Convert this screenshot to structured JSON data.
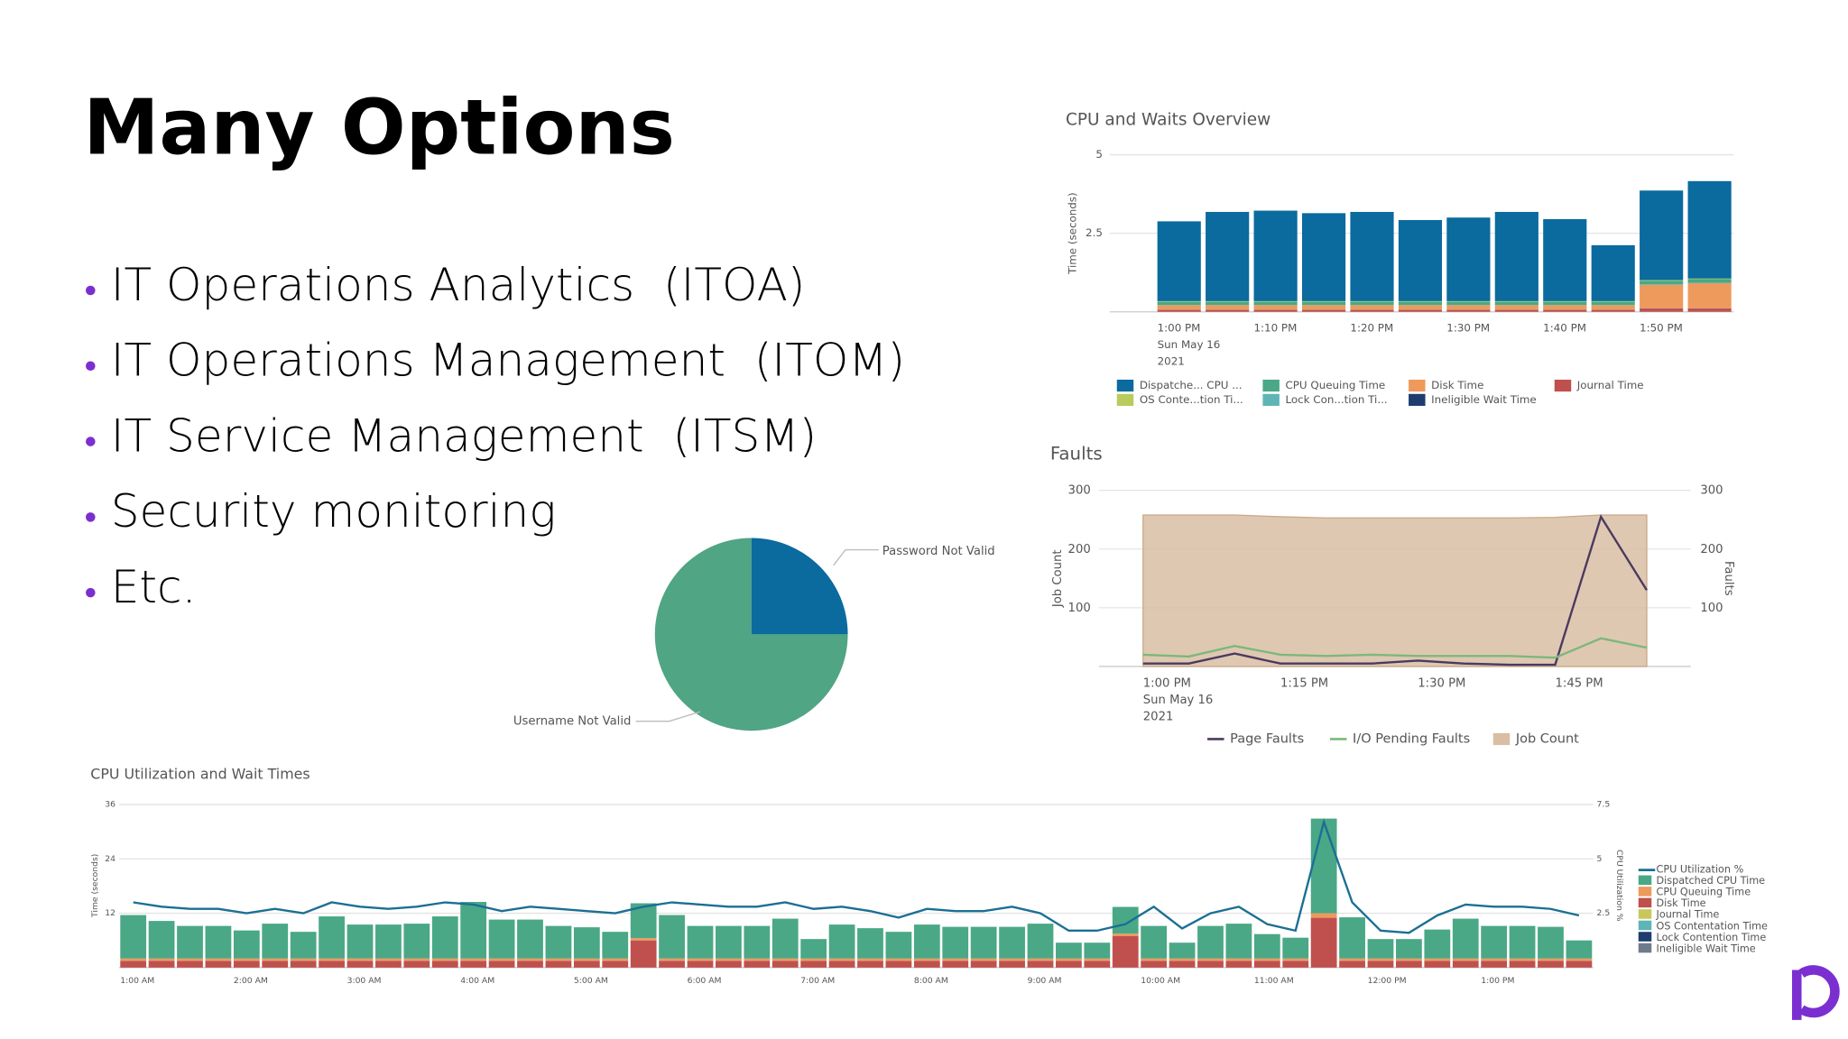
{
  "title": "Many Options",
  "bullets": [
    "IT Operations Analytics  (ITOA)",
    "IT Operations Management  (ITOM)",
    "IT Service Management  (ITSM)",
    "Security monitoring",
    "Etc."
  ],
  "chart_data": [
    {
      "type": "bar",
      "stacked": true,
      "title": "CPU and Waits Overview",
      "y_label": "Time (seconds)",
      "categories": [
        "1:00 PM",
        null,
        "1:10 PM",
        null,
        "1:20 PM",
        null,
        "1:30 PM",
        null,
        "1:40 PM",
        null,
        "1:50 PM",
        null
      ],
      "x_sublabels": [
        "Sun May 16",
        "2021"
      ],
      "ylim": [
        0,
        5
      ],
      "yticks": [
        2.5,
        5
      ],
      "grid": true,
      "series": [
        {
          "name": "Dispatche... CPU ...",
          "color": "#0b6a9e",
          "values": [
            2.54,
            2.84,
            2.88,
            2.8,
            2.84,
            2.58,
            2.66,
            2.84,
            2.61,
            1.78,
            2.85,
            3.1
          ]
        },
        {
          "name": "OS Conte...tion Ti...",
          "color": "#b7cc5c",
          "values": [
            0.02,
            0.02,
            0.02,
            0.02,
            0.02,
            0.02,
            0.02,
            0.02,
            0.02,
            0.02,
            0.02,
            0.02
          ]
        },
        {
          "name": "CPU Queuing Time",
          "color": "#4aa886",
          "values": [
            0.1,
            0.1,
            0.1,
            0.1,
            0.1,
            0.1,
            0.1,
            0.1,
            0.1,
            0.1,
            0.12,
            0.12
          ]
        },
        {
          "name": "Lock Con...tion Ti...",
          "color": "#5fb5b5",
          "values": [
            0.01,
            0.01,
            0.01,
            0.01,
            0.01,
            0.01,
            0.01,
            0.01,
            0.01,
            0.01,
            0.01,
            0.01
          ]
        },
        {
          "name": "Disk Time",
          "color": "#ee9a5d",
          "values": [
            0.15,
            0.15,
            0.15,
            0.15,
            0.15,
            0.15,
            0.15,
            0.15,
            0.15,
            0.15,
            0.75,
            0.8
          ]
        },
        {
          "name": "Ineligible Wait Time",
          "color": "#1f3c6e",
          "values": [
            0.01,
            0.01,
            0.01,
            0.01,
            0.01,
            0.01,
            0.01,
            0.01,
            0.01,
            0.01,
            0.01,
            0.01
          ]
        },
        {
          "name": "Journal Time",
          "color": "#c0504d",
          "values": [
            0.05,
            0.05,
            0.05,
            0.05,
            0.05,
            0.05,
            0.05,
            0.05,
            0.05,
            0.05,
            0.1,
            0.1
          ]
        }
      ]
    },
    {
      "type": "line",
      "title": "Faults",
      "y_label": "Job Count",
      "y2_label": "Faults",
      "categories": [
        "1:00 PM",
        null,
        null,
        "1:15 PM",
        null,
        null,
        "1:30 PM",
        null,
        null,
        "1:45 PM",
        null,
        null
      ],
      "x_sublabels": [
        "Sun May 16",
        "2021"
      ],
      "ylim": [
        0,
        300
      ],
      "yticks": [
        100,
        200,
        300
      ],
      "y2lim": [
        0,
        300
      ],
      "y2ticks": [
        100,
        200,
        300
      ],
      "grid": true,
      "series": [
        {
          "name": "Page Faults",
          "color": "#4b3a60",
          "axis": "y2",
          "values": [
            5,
            5,
            22,
            5,
            5,
            5,
            10,
            5,
            3,
            3,
            255,
            130
          ]
        },
        {
          "name": "I/O Pending Faults",
          "color": "#7cb87c",
          "axis": "y2",
          "values": [
            20,
            17,
            35,
            20,
            18,
            20,
            18,
            18,
            18,
            15,
            48,
            32
          ]
        },
        {
          "name": "Job Count",
          "color": "#d9bea3",
          "type": "area",
          "values": [
            258,
            258,
            258,
            255,
            253,
            253,
            253,
            253,
            253,
            254,
            258,
            258
          ]
        }
      ]
    },
    {
      "type": "pie",
      "categories": [
        "Password Not Valid",
        "Username Not Valid"
      ],
      "values": [
        25,
        75
      ],
      "colors": [
        "#0b6a9e",
        "#4fa584"
      ]
    },
    {
      "type": "bar",
      "stacked": true,
      "title": "CPU Utilization and Wait Times",
      "y_label": "Time (seconds)",
      "y2_label": "CPU Utilization %",
      "categories": [
        "1:00 AM",
        null,
        null,
        null,
        "2:00 AM",
        null,
        null,
        null,
        "3:00 AM",
        null,
        null,
        null,
        "4:00 AM",
        null,
        null,
        null,
        "5:00 AM",
        null,
        null,
        null,
        "6:00 AM",
        null,
        null,
        null,
        "7:00 AM",
        null,
        null,
        null,
        "8:00 AM",
        null,
        null,
        null,
        "9:00 AM",
        null,
        null,
        null,
        "10:00 AM",
        null,
        null,
        null,
        "11:00 AM",
        null,
        null,
        null,
        "12:00 PM",
        null,
        null,
        null,
        "1:00 PM",
        null,
        null,
        null
      ],
      "ylim": [
        0,
        36
      ],
      "yticks": [
        12,
        24,
        36
      ],
      "y2lim": [
        0,
        7.5
      ],
      "y2ticks": [
        2.5,
        5,
        7.5
      ],
      "grid": true,
      "series": [
        {
          "name": "CPU Utilization %",
          "color": "#1b6f94",
          "type": "line",
          "axis": "y2",
          "values": [
            3.0,
            2.8,
            2.7,
            2.7,
            2.5,
            2.7,
            2.5,
            3.0,
            2.8,
            2.7,
            2.8,
            3.0,
            2.9,
            2.6,
            2.8,
            2.7,
            2.6,
            2.5,
            2.8,
            3.0,
            2.9,
            2.8,
            2.8,
            3.0,
            2.7,
            2.8,
            2.6,
            2.3,
            2.7,
            2.6,
            2.6,
            2.8,
            2.5,
            1.7,
            1.7,
            2.0,
            2.8,
            1.8,
            2.5,
            2.8,
            2.0,
            1.7,
            6.7,
            3.0,
            1.7,
            1.6,
            2.4,
            2.9,
            2.8,
            2.8,
            2.7,
            2.4
          ]
        },
        {
          "name": "Dispatched CPU Time",
          "color": "#4aa886",
          "values": [
            9.6,
            8.3,
            7.2,
            7.2,
            6.2,
            7.7,
            5.9,
            9.3,
            7.5,
            7.5,
            7.7,
            9.3,
            12.5,
            8.6,
            8.6,
            7.2,
            6.9,
            5.9,
            7.7,
            9.6,
            7.2,
            7.2,
            7.2,
            8.8,
            4.3,
            7.5,
            6.7,
            5.9,
            7.5,
            7.0,
            7.0,
            7.0,
            7.7,
            3.5,
            3.5,
            5.9,
            7.2,
            3.5,
            7.2,
            7.7,
            5.4,
            4.6,
            20.9,
            9.1,
            4.3,
            4.3,
            6.4,
            8.8,
            7.2,
            7.2,
            7.0,
            4.0
          ]
        },
        {
          "name": "CPU Queuing Time",
          "color": "#ee9a5d",
          "values": [
            0.5,
            0.5,
            0.5,
            0.5,
            0.5,
            0.5,
            0.5,
            0.5,
            0.5,
            0.5,
            0.5,
            0.5,
            0.5,
            0.5,
            0.5,
            0.5,
            0.5,
            0.5,
            0.5,
            0.5,
            0.5,
            0.5,
            0.5,
            0.5,
            0.5,
            0.5,
            0.5,
            0.5,
            0.5,
            0.5,
            0.5,
            0.5,
            0.5,
            0.5,
            0.5,
            0.5,
            0.5,
            0.5,
            0.5,
            0.5,
            0.5,
            0.5,
            1.0,
            0.5,
            0.5,
            0.5,
            0.5,
            0.5,
            0.5,
            0.5,
            0.5,
            0.5
          ]
        },
        {
          "name": "Disk Time",
          "color": "#c0504d",
          "values": [
            1.5,
            1.5,
            1.5,
            1.5,
            1.5,
            1.5,
            1.5,
            1.5,
            1.5,
            1.5,
            1.5,
            1.5,
            1.5,
            1.5,
            1.5,
            1.5,
            1.5,
            1.5,
            6.0,
            1.5,
            1.5,
            1.5,
            1.5,
            1.5,
            1.5,
            1.5,
            1.5,
            1.5,
            1.5,
            1.5,
            1.5,
            1.5,
            1.5,
            1.5,
            1.5,
            7.0,
            1.5,
            1.5,
            1.5,
            1.5,
            1.5,
            1.5,
            11.0,
            1.5,
            1.5,
            1.5,
            1.5,
            1.5,
            1.5,
            1.5,
            1.5,
            1.5
          ]
        },
        {
          "name": "Journal Time",
          "color": "#c8c85a",
          "values": [
            0,
            0,
            0,
            0,
            0,
            0,
            0,
            0,
            0,
            0,
            0,
            0,
            0,
            0,
            0,
            0,
            0,
            0,
            0,
            0,
            0,
            0,
            0,
            0,
            0,
            0,
            0,
            0,
            0,
            0,
            0,
            0,
            0,
            0,
            0,
            0,
            0,
            0,
            0,
            0,
            0,
            0,
            0,
            0,
            0,
            0,
            0,
            0,
            0,
            0,
            0,
            0
          ]
        },
        {
          "name": "OS Contentation Time",
          "color": "#5fb5b5",
          "values": [
            0,
            0,
            0,
            0,
            0,
            0,
            0,
            0,
            0,
            0,
            0,
            0,
            0,
            0,
            0,
            0,
            0,
            0,
            0,
            0,
            0,
            0,
            0,
            0,
            0,
            0,
            0,
            0,
            0,
            0,
            0,
            0,
            0,
            0,
            0,
            0,
            0,
            0,
            0,
            0,
            0,
            0,
            0,
            0,
            0,
            0,
            0,
            0,
            0,
            0,
            0,
            0
          ]
        },
        {
          "name": "Lock Contention Time",
          "color": "#1f3c6e",
          "values": [
            0,
            0,
            0,
            0,
            0,
            0,
            0,
            0,
            0,
            0,
            0,
            0,
            0,
            0,
            0,
            0,
            0,
            0,
            0,
            0,
            0,
            0,
            0,
            0,
            0,
            0,
            0,
            0,
            0,
            0,
            0,
            0,
            0,
            0,
            0,
            0,
            0,
            0,
            0,
            0,
            0,
            0,
            0,
            0,
            0,
            0,
            0,
            0,
            0,
            0,
            0,
            0
          ]
        },
        {
          "name": "Ineligible Wait Time",
          "color": "#6e7b8b",
          "values": [
            0,
            0,
            0,
            0,
            0,
            0,
            0,
            0,
            0,
            0,
            0,
            0,
            0,
            0,
            0,
            0,
            0,
            0,
            0,
            0,
            0,
            0,
            0,
            0,
            0,
            0,
            0,
            0,
            0,
            0,
            0,
            0,
            0,
            0,
            0,
            0,
            0,
            0,
            0,
            0,
            0,
            0,
            0,
            0,
            0,
            0,
            0,
            0,
            0,
            0,
            0,
            0
          ]
        }
      ]
    }
  ]
}
